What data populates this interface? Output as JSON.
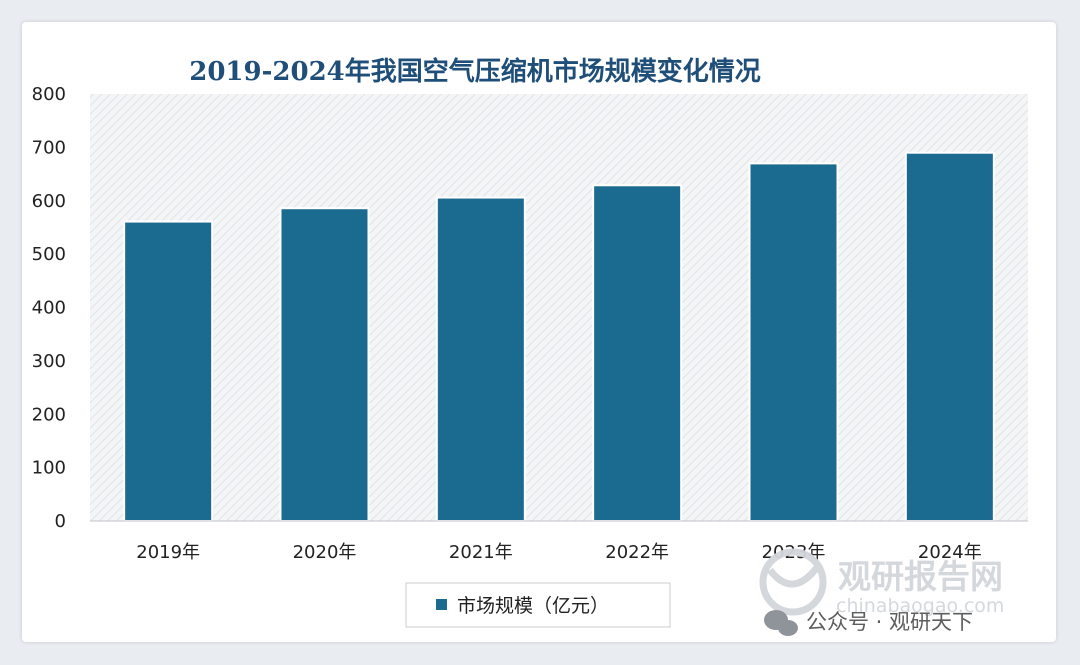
{
  "chart_data": {
    "type": "bar",
    "title": "2019-2024年我国空气压缩机市场规模变化情况",
    "categories": [
      "2019年",
      "2020年",
      "2021年",
      "2022年",
      "2023年",
      "2024年"
    ],
    "series": [
      {
        "name": "市场规模（亿元）",
        "values": [
          561,
          586,
          606,
          629,
          670,
          690
        ]
      }
    ],
    "ylim": [
      0,
      800
    ],
    "yticks": [
      0,
      100,
      200,
      300,
      400,
      500,
      600,
      700,
      800
    ],
    "yticks_labels": [
      "0",
      "100",
      "200",
      "300",
      "400",
      "500",
      "600",
      "700",
      "800"
    ],
    "xlabel": "",
    "ylabel": "",
    "legend_position": "bottom-center",
    "bar_color": "#1b6a8f",
    "plot_background": "hatched light gray"
  },
  "watermark": {
    "brand": "观研报告网",
    "url": "chinabaogao.com",
    "wechat": "公众号 · 观研天下"
  }
}
